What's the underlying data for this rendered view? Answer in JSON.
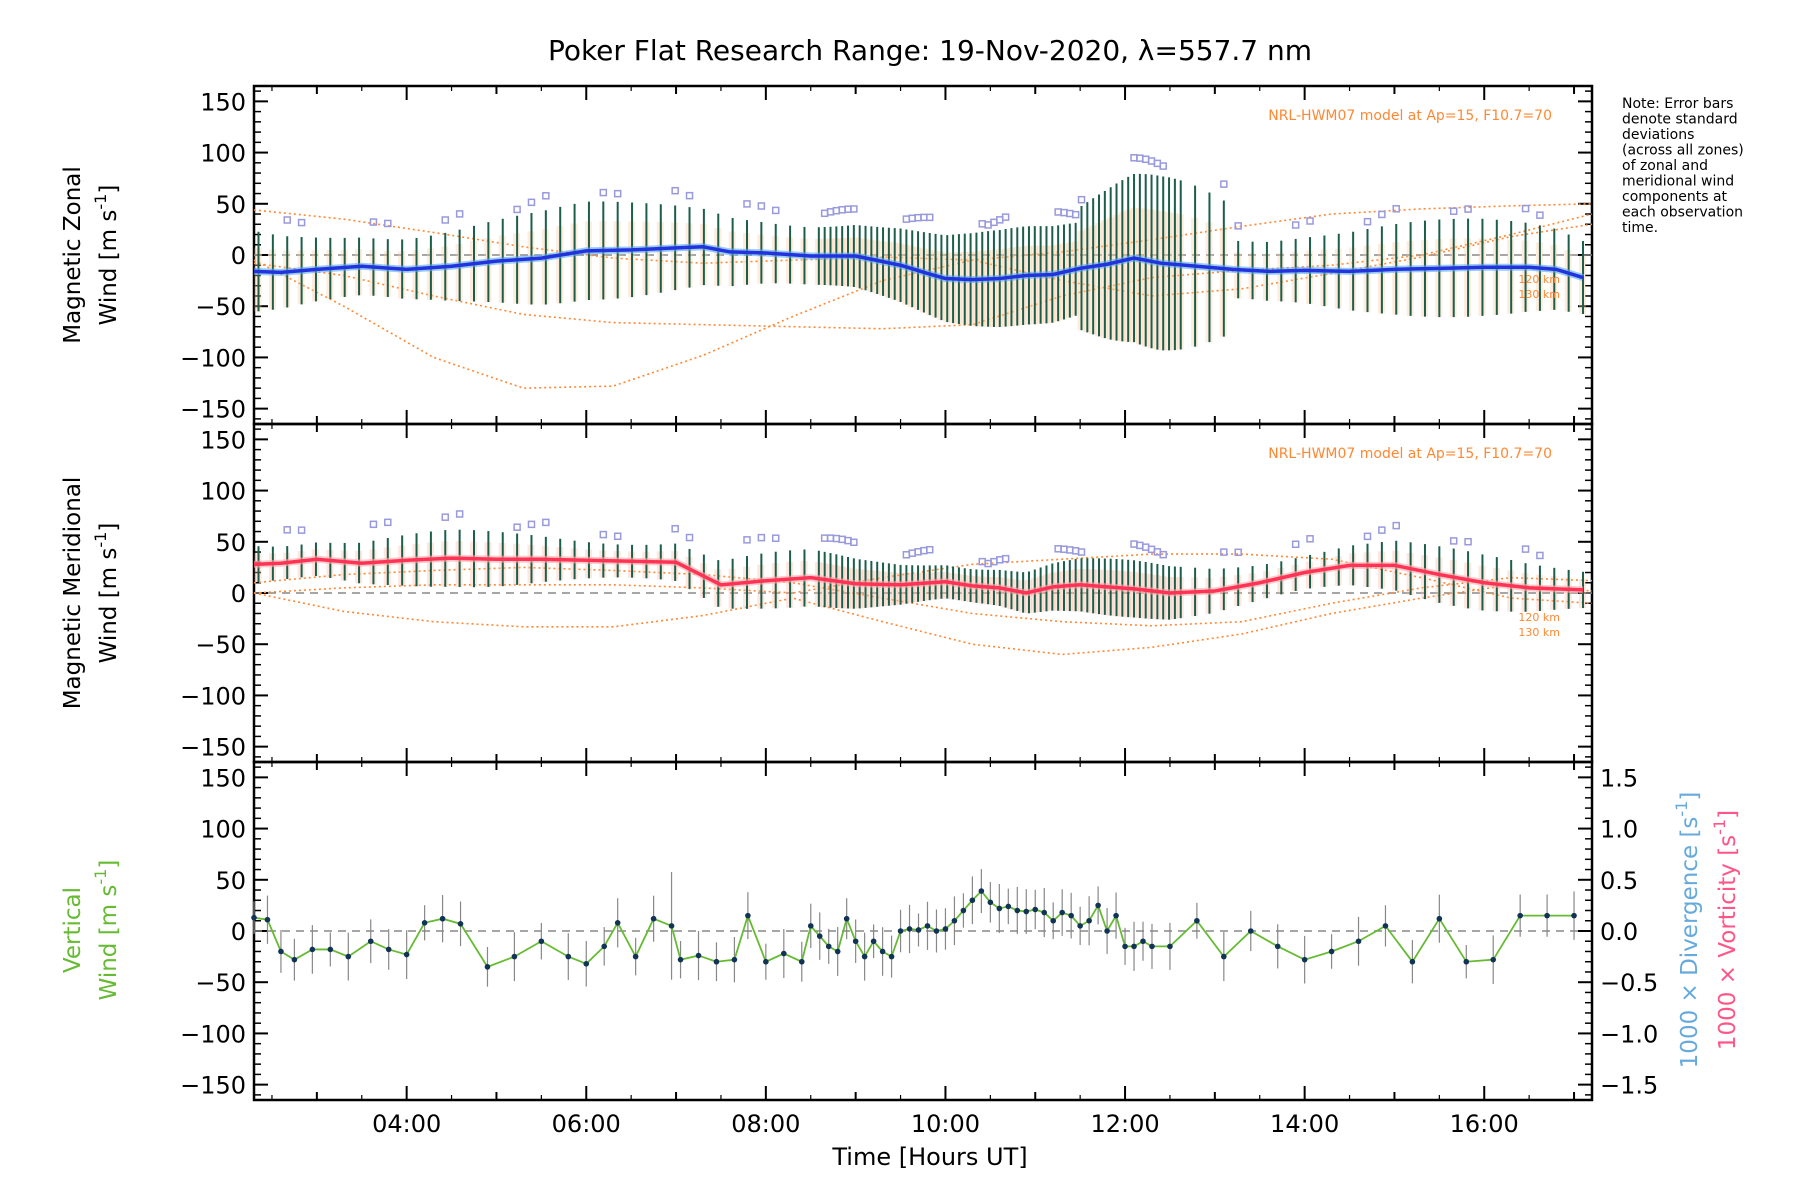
{
  "title": "Poker Flat Research Range: 19-Nov-2020, λ=557.7 nm",
  "note": [
    "Note: Error bars",
    "denote standard",
    "deviations",
    "(across all zones)",
    "of zonal and",
    "meridional wind",
    "components at",
    "each observation",
    "time."
  ],
  "model_label": "NRL-HWM07 model at Ap=15, F10.7=70",
  "alt_labels": [
    "120 km",
    "130 km"
  ],
  "xlabel": "Time [Hours UT]",
  "x_ticks": [
    "04:00",
    "06:00",
    "08:00",
    "10:00",
    "12:00",
    "14:00",
    "16:00"
  ],
  "y_ticks": [
    "150",
    "100",
    "50",
    "0",
    "−50",
    "−100",
    "−150"
  ],
  "y2_ticks": [
    "1.5",
    "1.0",
    "0.5",
    "0.0",
    "−0.5",
    "−1.0",
    "−1.5"
  ],
  "panel1_ylabel": [
    "Magnetic Zonal",
    "Wind [m s",
    "-1",
    "]"
  ],
  "panel2_ylabel": [
    "Magnetic Meridional",
    "Wind [m s",
    "-1",
    "]"
  ],
  "panel3_ylabel": [
    "Vertical",
    "Wind [m s",
    "-1",
    "]"
  ],
  "right_labels": {
    "divergence": [
      "1000 × Divergence [s",
      "-1",
      "]"
    ],
    "vorticity": [
      "1000 × Vorticity [s",
      "-1",
      "]"
    ]
  },
  "colors": {
    "zonal": "#2233dd",
    "zonal_light": "#55aaee",
    "meridional": "#ff3355",
    "vertical": "#66bb33",
    "model": "#ff8833",
    "errorbar": "#1b5e4a",
    "outlier": "#9999dd",
    "divergence": "#66aadd",
    "vorticity": "#ff5588"
  },
  "chart_data": [
    {
      "type": "line",
      "panel": "zonal",
      "xlim_hours": [
        2.3,
        17.2
      ],
      "ylim": [
        -165,
        165
      ],
      "x_hours": [
        2.3,
        2.6,
        3.0,
        3.5,
        4.0,
        4.5,
        5.0,
        5.5,
        6.0,
        6.5,
        7.0,
        7.3,
        7.6,
        8.0,
        8.5,
        9.0,
        9.5,
        9.8,
        10.0,
        10.3,
        10.6,
        10.9,
        11.2,
        11.5,
        11.8,
        12.1,
        12.4,
        12.8,
        13.2,
        13.6,
        14.0,
        14.5,
        15.0,
        15.5,
        16.0,
        16.5,
        16.8,
        17.1
      ],
      "values": [
        -16,
        -17,
        -14,
        -11,
        -14,
        -11,
        -6,
        -3,
        4,
        5,
        7,
        8,
        3,
        2,
        -1,
        -1,
        -10,
        -18,
        -23,
        -24,
        -23,
        -20,
        -19,
        -13,
        -9,
        -3,
        -8,
        -11,
        -14,
        -16,
        -15,
        -16,
        -14,
        -13,
        -12,
        -12,
        -14,
        -22
      ],
      "model_curves_x_hours": [
        2.3,
        3.3,
        4.3,
        5.3,
        6.3,
        7.3,
        8.3,
        9.3,
        10.3,
        11.3,
        12.3,
        13.3,
        14.3,
        15.3,
        16.3,
        17.2
      ],
      "model_curves": [
        [
          44,
          35,
          22,
          8,
          -3,
          -8,
          -5,
          -2,
          -5,
          -25,
          -40,
          -33,
          -18,
          -2,
          18,
          30
        ],
        [
          -5,
          -50,
          -100,
          -130,
          -128,
          -98,
          -60,
          -25,
          -5,
          3,
          15,
          28,
          40,
          45,
          48,
          50
        ],
        [
          -8,
          -20,
          -40,
          -58,
          -66,
          -68,
          -70,
          -72,
          -68,
          -40,
          -22,
          -15,
          -10,
          0,
          20,
          40
        ]
      ],
      "zero_line": 0
    },
    {
      "type": "line",
      "panel": "meridional",
      "xlim_hours": [
        2.3,
        17.2
      ],
      "ylim": [
        -165,
        165
      ],
      "x_hours": [
        2.3,
        2.6,
        3.0,
        3.5,
        4.0,
        4.5,
        5.0,
        5.5,
        6.0,
        6.5,
        7.0,
        7.5,
        8.0,
        8.5,
        9.0,
        9.5,
        10.0,
        10.3,
        10.6,
        10.9,
        11.2,
        11.5,
        11.8,
        12.1,
        12.5,
        13.0,
        13.5,
        14.0,
        14.5,
        15.0,
        15.5,
        16.0,
        16.5,
        17.1
      ],
      "values": [
        28,
        29,
        33,
        29,
        32,
        34,
        33,
        33,
        32,
        31,
        30,
        8,
        12,
        15,
        9,
        8,
        11,
        7,
        5,
        0,
        6,
        8,
        6,
        4,
        0,
        2,
        10,
        20,
        27,
        27,
        18,
        10,
        5,
        3
      ],
      "model_curves_x_hours": [
        2.3,
        3.3,
        4.3,
        5.3,
        6.3,
        7.3,
        8.3,
        9.3,
        10.3,
        11.3,
        12.3,
        13.3,
        14.3,
        15.3,
        16.3,
        17.2
      ],
      "model_curves": [
        [
          0,
          -18,
          -28,
          -33,
          -33,
          -22,
          -5,
          -28,
          -50,
          -60,
          -53,
          -40,
          -20,
          -5,
          8,
          2
        ],
        [
          0,
          5,
          8,
          8,
          8,
          5,
          0,
          15,
          28,
          33,
          38,
          38,
          33,
          15,
          -5,
          -10
        ],
        [
          10,
          18,
          22,
          25,
          22,
          18,
          10,
          -5,
          -20,
          -28,
          -32,
          -28,
          -10,
          5,
          15,
          12
        ]
      ],
      "zero_line": 0
    },
    {
      "type": "scatter",
      "panel": "vertical",
      "xlim_hours": [
        2.3,
        17.2
      ],
      "ylim": [
        -165,
        165
      ],
      "y2lim": [
        -1.65,
        1.65
      ],
      "x_hours": [
        2.3,
        2.45,
        2.6,
        2.75,
        2.95,
        3.15,
        3.35,
        3.6,
        3.8,
        4.0,
        4.2,
        4.4,
        4.6,
        4.9,
        5.2,
        5.5,
        5.8,
        6.0,
        6.2,
        6.35,
        6.55,
        6.75,
        6.95,
        7.05,
        7.25,
        7.45,
        7.65,
        7.8,
        8.0,
        8.2,
        8.4,
        8.5,
        8.6,
        8.7,
        8.8,
        8.9,
        9.0,
        9.1,
        9.2,
        9.3,
        9.4,
        9.5,
        9.6,
        9.7,
        9.8,
        9.9,
        10.0,
        10.1,
        10.2,
        10.3,
        10.4,
        10.5,
        10.6,
        10.7,
        10.8,
        10.9,
        11.0,
        11.1,
        11.2,
        11.3,
        11.4,
        11.5,
        11.6,
        11.7,
        11.8,
        11.9,
        12.0,
        12.1,
        12.2,
        12.3,
        12.5,
        12.8,
        13.1,
        13.4,
        13.7,
        14.0,
        14.3,
        14.6,
        14.9,
        15.2,
        15.5,
        15.8,
        16.1,
        16.4,
        16.7,
        17.0
      ],
      "values": [
        13,
        11,
        -20,
        -28,
        -18,
        -18,
        -25,
        -10,
        -18,
        -23,
        8,
        12,
        7,
        -35,
        -25,
        -10,
        -25,
        -32,
        -15,
        8,
        -25,
        12,
        5,
        -28,
        -24,
        -30,
        -28,
        15,
        -30,
        -22,
        -30,
        5,
        -5,
        -15,
        -20,
        12,
        -10,
        -25,
        -10,
        -20,
        -25,
        0,
        2,
        1,
        5,
        0,
        2,
        10,
        20,
        30,
        39,
        28,
        22,
        24,
        20,
        19,
        21,
        18,
        10,
        18,
        15,
        5,
        10,
        25,
        0,
        15,
        -15,
        -15,
        -10,
        -15,
        -15,
        10,
        -25,
        0,
        -15,
        -28,
        -20,
        -10,
        5,
        -30,
        12,
        -30,
        -28,
        15,
        15,
        15
      ],
      "zero_line": 0
    }
  ]
}
